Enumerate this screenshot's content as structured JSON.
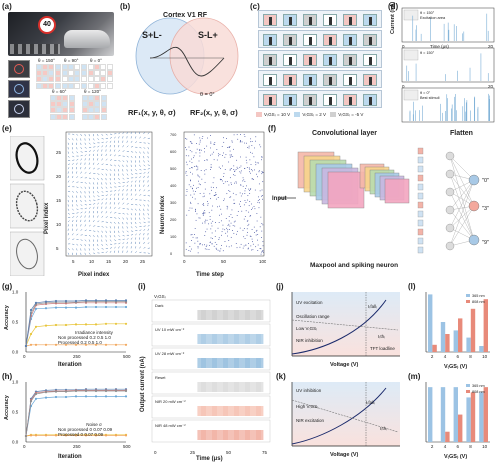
{
  "panels": {
    "a": "(a)",
    "b": "(b)",
    "c": "(c)",
    "d": "(d)",
    "e": "(e)",
    "f": "(f)",
    "g": "(g)",
    "h": "(h)",
    "i": "(i)",
    "j": "(j)",
    "k": "(k)",
    "l": "(l)",
    "m": "(m)"
  },
  "panel_a": {
    "sign_text": "40",
    "angles": [
      "θ = 150°",
      "θ = 90°",
      "θ = 0°",
      "θ = 60°",
      "θ = 120°"
    ]
  },
  "panel_b": {
    "title": "Cortex V1 RF",
    "left_field": "S+L-",
    "right_field": "S-L+",
    "theta": "θ = 0°",
    "rf1": "RF₁(x, y, θ, σ)",
    "rf2": "RF₂(x, y, θ, σ)"
  },
  "panel_c": {
    "legend": [
      "V₍GS₎ = 10 V",
      "V₍GS₎ = 2 V",
      "V₍GS₎ = -5 V"
    ],
    "legend_colors": [
      "#f4c7c3",
      "#bcd9ee",
      "#d0d0d0"
    ]
  },
  "panel_d": {
    "ylabel": "Current (nA)",
    "xlabel": "Time (μs)",
    "x_ticks": [
      "0",
      "20"
    ],
    "insets": [
      {
        "angle": "θ = 150°",
        "note": "Excitation area"
      },
      {
        "angle": "θ = 150°",
        "note": ""
      },
      {
        "angle": "θ = 0°",
        "note": "Best stimuli"
      }
    ]
  },
  "panel_e": {
    "heat_ylabel": "Pixel index",
    "heat_xlabel": "Pixel index",
    "heat_ticks": [
      "5",
      "10",
      "15",
      "20",
      "25"
    ],
    "raster_ylabel": "Neuron index",
    "raster_xlabel": "Time step",
    "raster_xticks": [
      "0",
      "50",
      "100"
    ],
    "raster_yticks": [
      "0",
      "100",
      "200",
      "300",
      "400",
      "500",
      "600",
      "700"
    ]
  },
  "panel_f": {
    "conv": "Convolutional layer",
    "flatten": "Flatten",
    "input": "Input",
    "maxpool": "Maxpool and spiking neuron",
    "outputs": [
      "\"0\"",
      "\"3\"",
      "\"9\""
    ]
  },
  "panel_g": {
    "ylabel": "Accuracy",
    "xlabel": "Iteration",
    "x_ticks": [
      "0",
      "250",
      "500"
    ],
    "y_ticks": [
      "0.0",
      "0.5",
      "1.0"
    ],
    "legend_title": "Irradiance intensity",
    "legend_rows": [
      {
        "name": "Non processed",
        "vals": [
          "0.2",
          "0.5",
          "1.0"
        ]
      },
      {
        "name": "Processed",
        "vals": [
          "0.2",
          "0.5",
          "1.0"
        ]
      }
    ]
  },
  "panel_h": {
    "ylabel": "Accuracy",
    "xlabel": "Iteration",
    "x_ticks": [
      "0",
      "250",
      "500"
    ],
    "y_ticks": [
      "0.0",
      "0.5",
      "1.0"
    ],
    "legend_title": "Noise σ",
    "legend_rows": [
      {
        "name": "Non processed",
        "vals": [
          "0",
          "0.07",
          "0.09"
        ]
      },
      {
        "name": "Processed",
        "vals": [
          "0",
          "0.07",
          "0.09"
        ]
      }
    ]
  },
  "panel_i": {
    "ylabel": "Output current (nA)",
    "xlabel": "Time (μs)",
    "x_ticks": [
      "0",
      "25",
      "50",
      "75"
    ],
    "vgs": "V₍GS₎",
    "rows": [
      {
        "label": "Dark",
        "color": "#b5b5b5"
      },
      {
        "label": "UV 10 mW cm⁻²",
        "color": "#7aaed6"
      },
      {
        "label": "UV 28 mW cm⁻²",
        "color": "#5f9ccd"
      },
      {
        "label": "Reset",
        "color": "#c8c8c8"
      },
      {
        "label": "NIR 20 mW cm⁻²",
        "color": "#f1a08a"
      },
      {
        "label": "NIR 48 mW cm⁻²",
        "color": "#ea8570"
      }
    ]
  },
  "panel_j": {
    "label_uv": "UV excitation",
    "osc": "Oscillation range",
    "low": "Low V₍GS₎",
    "nir": "NIR inhibition",
    "ifall": "I₍fall₎",
    "ith": "I₍th₎",
    "tft": "TFT loadline",
    "xlabel": "Voltage (V)",
    "ylabel": "Current"
  },
  "panel_k": {
    "uv": "UV inhibition",
    "high": "High V₍GS₎",
    "nir": "NIR excitation",
    "ifall": "I₍fall₎",
    "ith": "I₍th₎",
    "xlabel": "Voltage (V)",
    "ylabel": "Current"
  },
  "panel_l": {
    "ylabel_left": "Excitation range (mW cm⁻²)",
    "ylabel_right": "Excitation range (mW cm⁻²)",
    "xlabel": "V₍GS₎ (V)",
    "legend": [
      "365 nm",
      "808 nm"
    ]
  },
  "panel_m": {
    "ylabel": "Encoding window (MHz)",
    "xlabel": "V₍GS₎ (V)",
    "legend": [
      "365 nm",
      "808 nm"
    ]
  },
  "chart_data": [
    {
      "type": "line",
      "panel": "g",
      "xlabel": "Iteration",
      "ylabel": "Accuracy",
      "ylim": [
        0,
        1
      ],
      "x": [
        0,
        25,
        50,
        100,
        150,
        200,
        250,
        300,
        350,
        400,
        450,
        500
      ],
      "series": [
        {
          "name": "Non processed 0.2",
          "color": "#f2a65a",
          "values": [
            0.1,
            0.12,
            0.12,
            0.12,
            0.12,
            0.12,
            0.12,
            0.12,
            0.12,
            0.12,
            0.12,
            0.12
          ]
        },
        {
          "name": "Non processed 0.5",
          "color": "#e8c53a",
          "values": [
            0.1,
            0.3,
            0.42,
            0.44,
            0.45,
            0.45,
            0.46,
            0.46,
            0.46,
            0.47,
            0.47,
            0.47
          ]
        },
        {
          "name": "Non processed 1.0",
          "color": "#6aa8d8",
          "values": [
            0.1,
            0.55,
            0.72,
            0.73,
            0.74,
            0.74,
            0.74,
            0.75,
            0.75,
            0.75,
            0.75,
            0.75
          ]
        },
        {
          "name": "Processed 0.2",
          "color": "#c97b7b",
          "values": [
            0.1,
            0.6,
            0.78,
            0.8,
            0.81,
            0.81,
            0.82,
            0.82,
            0.82,
            0.82,
            0.82,
            0.82
          ]
        },
        {
          "name": "Processed 0.5",
          "color": "#8f8f8f",
          "values": [
            0.1,
            0.65,
            0.8,
            0.82,
            0.83,
            0.83,
            0.83,
            0.84,
            0.84,
            0.84,
            0.84,
            0.84
          ]
        },
        {
          "name": "Processed 1.0",
          "color": "#5a7fb0",
          "values": [
            0.1,
            0.7,
            0.82,
            0.84,
            0.85,
            0.85,
            0.85,
            0.86,
            0.86,
            0.86,
            0.86,
            0.86
          ]
        }
      ]
    },
    {
      "type": "line",
      "panel": "h",
      "xlabel": "Iteration",
      "ylabel": "Accuracy",
      "ylim": [
        0,
        1
      ],
      "x": [
        0,
        25,
        50,
        100,
        150,
        200,
        250,
        300,
        350,
        400,
        450,
        500
      ],
      "series": [
        {
          "name": "Non processed 0",
          "color": "#6aa8d8",
          "values": [
            0.1,
            0.6,
            0.72,
            0.74,
            0.75,
            0.75,
            0.76,
            0.76,
            0.76,
            0.76,
            0.76,
            0.76
          ]
        },
        {
          "name": "Non processed 0.07",
          "color": "#e8c53a",
          "values": [
            0.1,
            0.12,
            0.12,
            0.12,
            0.12,
            0.12,
            0.12,
            0.12,
            0.12,
            0.12,
            0.12,
            0.12
          ]
        },
        {
          "name": "Non processed 0.09",
          "color": "#f2a65a",
          "values": [
            0.1,
            0.11,
            0.11,
            0.11,
            0.11,
            0.11,
            0.11,
            0.11,
            0.11,
            0.11,
            0.11,
            0.11
          ]
        },
        {
          "name": "Processed 0",
          "color": "#5a7fb0",
          "values": [
            0.1,
            0.72,
            0.84,
            0.86,
            0.87,
            0.87,
            0.87,
            0.88,
            0.88,
            0.88,
            0.88,
            0.88
          ]
        },
        {
          "name": "Processed 0.07",
          "color": "#c97b7b",
          "values": [
            0.1,
            0.7,
            0.82,
            0.84,
            0.85,
            0.85,
            0.86,
            0.86,
            0.86,
            0.86,
            0.86,
            0.86
          ]
        },
        {
          "name": "Processed 0.09",
          "color": "#8f8f8f",
          "values": [
            0.1,
            0.68,
            0.8,
            0.83,
            0.84,
            0.84,
            0.85,
            0.85,
            0.85,
            0.85,
            0.85,
            0.85
          ]
        }
      ]
    },
    {
      "type": "bar",
      "panel": "l",
      "xlabel": "V₍GS₎ (V)",
      "categories": [
        "2",
        "4",
        "6",
        "8",
        "10"
      ],
      "series": [
        {
          "name": "365 nm",
          "color": "#9cc3e4",
          "values": [
            48,
            25,
            18,
            12,
            5
          ]
        },
        {
          "name": "808 nm",
          "color": "#e88a7a",
          "values": [
            6,
            15,
            28,
            36,
            44
          ]
        }
      ],
      "ylim": [
        0,
        50
      ]
    },
    {
      "type": "bar",
      "panel": "m",
      "xlabel": "V₍GS₎ (V)",
      "ylabel": "Encoding window (MHz)",
      "categories": [
        "2",
        "4",
        "6",
        "8",
        "10"
      ],
      "series": [
        {
          "name": "365 nm",
          "color": "#9cc3e4",
          "values": [
            3.2,
            3.2,
            3.2,
            2.6,
            2.9
          ]
        },
        {
          "name": "808 nm",
          "color": "#e88a7a",
          "values": [
            0.0,
            0.6,
            1.6,
            2.9,
            3.2
          ]
        }
      ],
      "ylim": [
        0,
        3.5
      ]
    }
  ]
}
